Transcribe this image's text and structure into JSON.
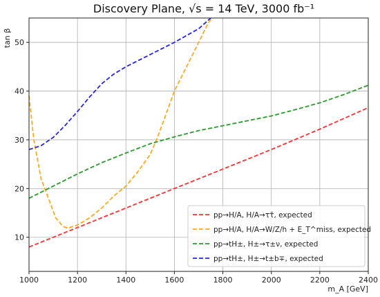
{
  "chart_data": {
    "type": "line",
    "title": "Discovery Plane, √s = 14 TeV, 3000 fb⁻¹",
    "xlabel": "m_A [GeV]",
    "ylabel": "tan β",
    "xlim": [
      1000,
      2400
    ],
    "ylim": [
      3,
      55
    ],
    "xticks": [
      "1000",
      "1200",
      "1400",
      "1600",
      "1800",
      "2000",
      "2200",
      "2400"
    ],
    "yticks": [
      "10",
      "20",
      "30",
      "40",
      "50"
    ],
    "grid": true,
    "legend_position": "bottom-right",
    "series": [
      {
        "name": "pp→H/A, H/A→ττ̄, expected",
        "color": "#ff3030",
        "x": [
          1000,
          1200,
          1400,
          1600,
          1800,
          2000,
          2200,
          2400
        ],
        "y": [
          8,
          12,
          16,
          20,
          24,
          28,
          32.2,
          36.6
        ]
      },
      {
        "name": "pp→H/A, H/A→W/Z/h + E_T^miss, expected",
        "color": "#ffaa1a",
        "x": [
          1000,
          1020,
          1050,
          1080,
          1110,
          1140,
          1160,
          1200,
          1250,
          1300,
          1350,
          1400,
          1450,
          1500,
          1530,
          1560,
          1600,
          1650,
          1700,
          1740,
          1755
        ],
        "y": [
          39,
          30,
          22,
          18,
          14,
          12.2,
          11.9,
          12.5,
          14,
          16,
          18.5,
          20.5,
          23.5,
          27,
          30.5,
          34.5,
          40,
          45,
          50,
          54,
          55
        ]
      },
      {
        "name": "pp→tH±, H±→τ±ν, expected",
        "color": "#2a9a2a",
        "x": [
          1000,
          1100,
          1200,
          1300,
          1400,
          1500,
          1600,
          1700,
          1800,
          1900,
          2000,
          2100,
          2200,
          2300,
          2400
        ],
        "y": [
          18,
          20.5,
          23,
          25.3,
          27.3,
          29.2,
          30.6,
          31.9,
          32.9,
          33.9,
          34.9,
          36.2,
          37.6,
          39.3,
          41.2
        ]
      },
      {
        "name": "pp→tH±, H±→t±b∓, expected",
        "color": "#2323ee",
        "x": [
          1000,
          1050,
          1100,
          1150,
          1200,
          1250,
          1300,
          1350,
          1400,
          1500,
          1600,
          1700,
          1750
        ],
        "y": [
          28,
          28.8,
          30.5,
          33,
          35.8,
          38.8,
          41.5,
          43.5,
          45,
          47.5,
          50,
          52.8,
          55
        ]
      }
    ]
  }
}
